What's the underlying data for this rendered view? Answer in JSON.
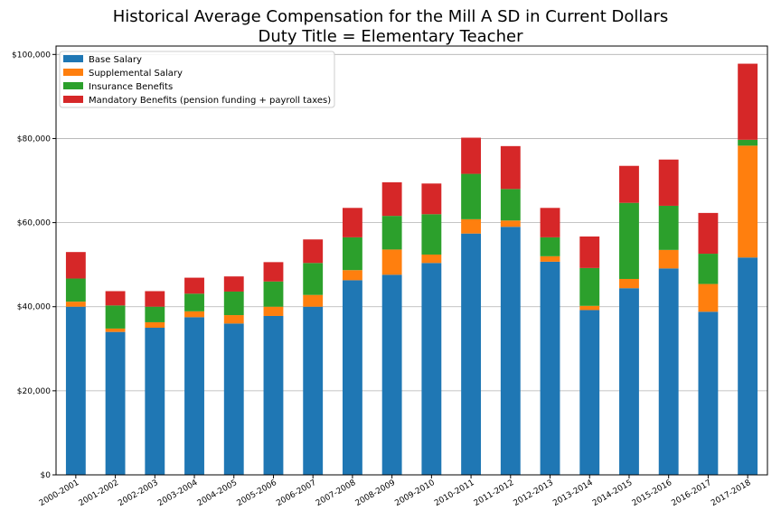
{
  "chart_data": {
    "type": "bar",
    "stacked": true,
    "title": "Historical Average Compensation for the Mill A SD in Current Dollars",
    "subtitle": "Duty Title = Elementary Teacher",
    "categories": [
      "2000-2001",
      "2001-2002",
      "2002-2003",
      "2003-2004",
      "2004-2005",
      "2005-2006",
      "2006-2007",
      "2007-2008",
      "2008-2009",
      "2009-2010",
      "2010-2011",
      "2011-2012",
      "2012-2013",
      "2013-2014",
      "2014-2015",
      "2015-2016",
      "2016-2017",
      "2017-2018"
    ],
    "series": [
      {
        "name": "Base Salary",
        "color": "#1f77b4",
        "values": [
          40000,
          34000,
          35000,
          37500,
          36000,
          37800,
          40000,
          46300,
          47600,
          50400,
          57400,
          59000,
          50700,
          39200,
          44400,
          49100,
          38800,
          51700
        ]
      },
      {
        "name": "Supplemental Salary",
        "color": "#ff7f0e",
        "values": [
          1200,
          800,
          1300,
          1400,
          2000,
          2200,
          2800,
          2400,
          6000,
          2000,
          3400,
          1500,
          1300,
          1000,
          2200,
          4400,
          6600,
          26600
        ]
      },
      {
        "name": "Insurance Benefits",
        "color": "#2ca02c",
        "values": [
          5500,
          5500,
          3700,
          4200,
          5600,
          6000,
          7600,
          7800,
          8000,
          9600,
          10800,
          7500,
          4500,
          9000,
          18100,
          10500,
          7200,
          1400
        ]
      },
      {
        "name": "Mandatory Benefits (pension funding + payroll taxes)",
        "color": "#d62728",
        "values": [
          6300,
          3400,
          3700,
          3800,
          3600,
          4600,
          5600,
          7000,
          8000,
          7300,
          8600,
          10200,
          7000,
          7500,
          8800,
          11000,
          9700,
          18100
        ]
      }
    ],
    "ylim": [
      0,
      102000
    ],
    "yticks": [
      0,
      20000,
      40000,
      60000,
      80000,
      100000
    ],
    "ytick_labels": [
      "$0",
      "$20,000",
      "$40,000",
      "$60,000",
      "$80,000",
      "$100,000"
    ],
    "grid": "horizontal",
    "legend_position": "top-left",
    "xlabel": "",
    "ylabel": ""
  }
}
